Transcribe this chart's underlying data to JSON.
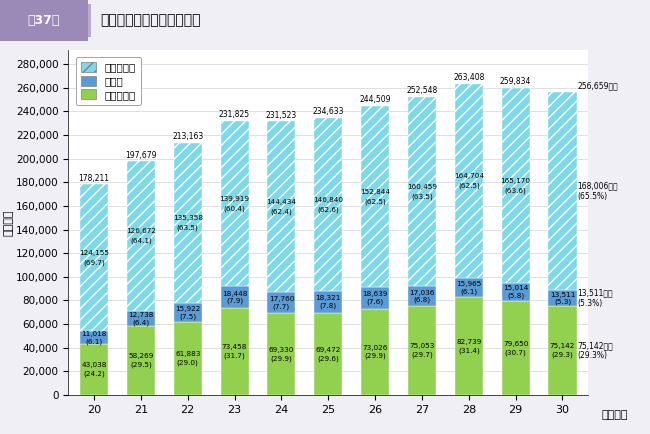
{
  "title": "民生費の財源構成比の推移",
  "header_label": "第37図",
  "ylabel": "（億円）",
  "xlabel": "（年度）",
  "years": [
    20,
    21,
    22,
    23,
    24,
    25,
    26,
    27,
    28,
    29,
    30
  ],
  "kokko": [
    43038,
    58269,
    61883,
    73458,
    69330,
    69472,
    73026,
    75053,
    82739,
    79650,
    75142
  ],
  "sonota": [
    11018,
    12738,
    15922,
    18448,
    17760,
    18321,
    18639,
    17036,
    15965,
    15014,
    13511
  ],
  "ippan": [
    124155,
    126672,
    135358,
    139919,
    144434,
    146840,
    152844,
    160459,
    164704,
    165170,
    168006
  ],
  "totals": [
    178211,
    197679,
    213163,
    231825,
    231523,
    234633,
    244509,
    252548,
    263408,
    259834,
    256659
  ],
  "kokko_pct": [
    24.2,
    29.5,
    29.0,
    31.7,
    29.9,
    29.6,
    29.9,
    29.7,
    31.4,
    30.7,
    29.3
  ],
  "sonota_pct": [
    6.1,
    6.4,
    7.5,
    7.9,
    7.7,
    7.8,
    7.6,
    6.8,
    6.1,
    5.8,
    5.3
  ],
  "ippan_pct": [
    69.7,
    64.1,
    63.5,
    60.4,
    62.4,
    62.6,
    62.5,
    63.5,
    62.5,
    63.6,
    65.5
  ],
  "color_ippan": "#7dd8e8",
  "color_sonota": "#5b9bd5",
  "color_kokko": "#92d050",
  "hatch_ippan": "///",
  "ylim": [
    0,
    292000
  ],
  "yticks": [
    0,
    20000,
    40000,
    60000,
    80000,
    100000,
    120000,
    140000,
    160000,
    180000,
    200000,
    220000,
    240000,
    260000,
    280000
  ],
  "legend_labels": [
    "一般財源等",
    "その他",
    "国庫支出金"
  ],
  "header_bg": "#9b8ab8",
  "header_text_color": "white",
  "bg_color": "#f0eff5"
}
